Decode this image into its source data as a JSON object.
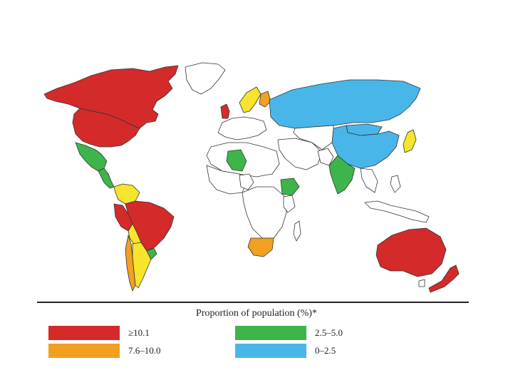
{
  "legend": {
    "title": "Proportion of population (%)*",
    "classes": [
      {
        "label": "≥10.1",
        "color": "#d42a2a"
      },
      {
        "label": "7.6–10.0",
        "color": "#f2a020"
      },
      {
        "label": "2.5–5.0",
        "color": "#3db54a"
      },
      {
        "label": "0–2.5",
        "color": "#49b6ea"
      }
    ]
  },
  "map": {
    "no_data_color": "#ffffff",
    "ocean_color": "#ffffff",
    "yellow_class_color": "#f7e42c",
    "regions": [
      {
        "name": "canada",
        "class_color": "#d42a2a"
      },
      {
        "name": "usa",
        "class_color": "#d42a2a"
      },
      {
        "name": "mexico",
        "class_color": "#3db54a"
      },
      {
        "name": "central-america",
        "class_color": "#3db54a"
      },
      {
        "name": "colombia-venezuela",
        "class_color": "#f7e42c"
      },
      {
        "name": "peru",
        "class_color": "#d42a2a"
      },
      {
        "name": "brazil",
        "class_color": "#d42a2a"
      },
      {
        "name": "bolivia",
        "class_color": "#f7e42c"
      },
      {
        "name": "chile",
        "class_color": "#f2a020"
      },
      {
        "name": "argentina",
        "class_color": "#f7e42c"
      },
      {
        "name": "uruguay",
        "class_color": "#3db54a"
      },
      {
        "name": "uk",
        "class_color": "#d42a2a"
      },
      {
        "name": "scandinavia",
        "class_color": "#f7e42c"
      },
      {
        "name": "finland",
        "class_color": "#f2a020"
      },
      {
        "name": "russia",
        "class_color": "#49b6ea"
      },
      {
        "name": "china",
        "class_color": "#49b6ea"
      },
      {
        "name": "mongolia",
        "class_color": "#49b6ea"
      },
      {
        "name": "japan",
        "class_color": "#f7e42c"
      },
      {
        "name": "india",
        "class_color": "#3db54a"
      },
      {
        "name": "australia",
        "class_color": "#d42a2a"
      },
      {
        "name": "new-zealand",
        "class_color": "#d42a2a"
      },
      {
        "name": "south-africa",
        "class_color": "#f2a020"
      },
      {
        "name": "ethiopia",
        "class_color": "#3db54a"
      },
      {
        "name": "algeria",
        "class_color": "#3db54a"
      }
    ]
  }
}
